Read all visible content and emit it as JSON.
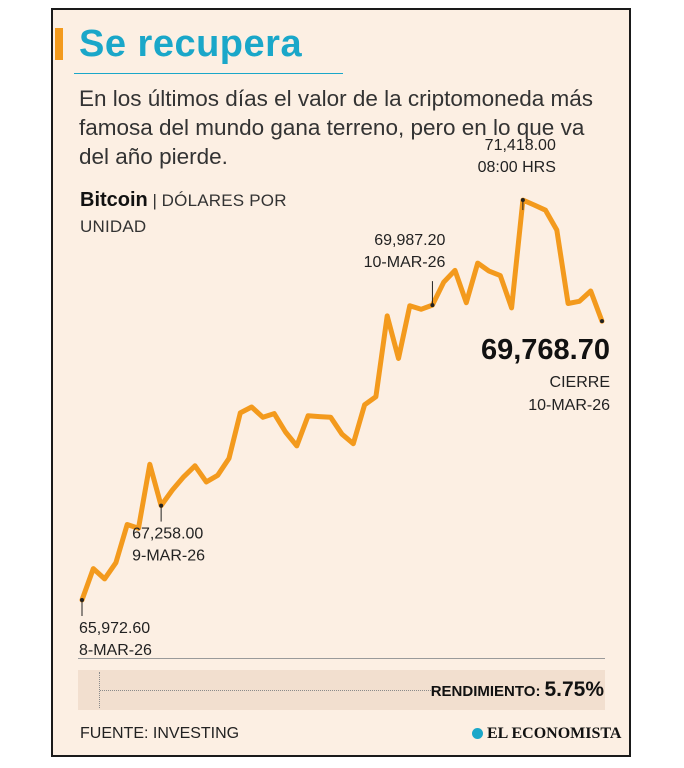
{
  "header": {
    "title": "Se recupera",
    "subtitle": "En los últimos días el valor de la criptomoneda más famosa del mundo gana terreno, pero en lo que va del año pierde."
  },
  "metric": {
    "name": "Bitcoin",
    "separator": "|",
    "unit": "DÓLARES POR UNIDAD"
  },
  "chart_data": {
    "type": "line",
    "title": "Se recupera",
    "ylabel": "Bitcoin | DÓLARES POR UNIDAD",
    "xlabel": "",
    "line_color": "#f39a1d",
    "ylim": [
      65700,
      71800
    ],
    "series": [
      {
        "name": "Bitcoin",
        "values": [
          65972.6,
          66400,
          66260,
          66480,
          67000,
          66950,
          67820,
          67258,
          67470,
          67650,
          67800,
          67580,
          67670,
          67900,
          68520,
          68600,
          68460,
          68510,
          68260,
          68070,
          68480,
          68470,
          68460,
          68230,
          68100,
          68630,
          68740,
          69840,
          69260,
          69980,
          69930,
          69987.2,
          70300,
          70460,
          70020,
          70560,
          70450,
          70390,
          69950,
          71418,
          71350,
          71280,
          71010,
          70010,
          70040,
          70180,
          69768.7
        ]
      }
    ],
    "annotations": [
      {
        "index": 0,
        "value": "65,972.60",
        "label": "8-MAR-26"
      },
      {
        "index": 7,
        "value": "67,258.00",
        "label": "9-MAR-26"
      },
      {
        "index": 31,
        "value": "69,987.20",
        "label": "10-MAR-26"
      },
      {
        "index": 39,
        "value": "71,418.00",
        "label": "08:00 HRS"
      },
      {
        "index": 46,
        "value": "69,768.70",
        "label": "CIERRE",
        "label2": "10-MAR-26"
      }
    ]
  },
  "footer": {
    "rendimiento_label": "RENDIMIENTO:",
    "rendimiento_value": "5.75%",
    "source": "FUENTE: INVESTING",
    "logo": "EL ECONOMISTA"
  }
}
